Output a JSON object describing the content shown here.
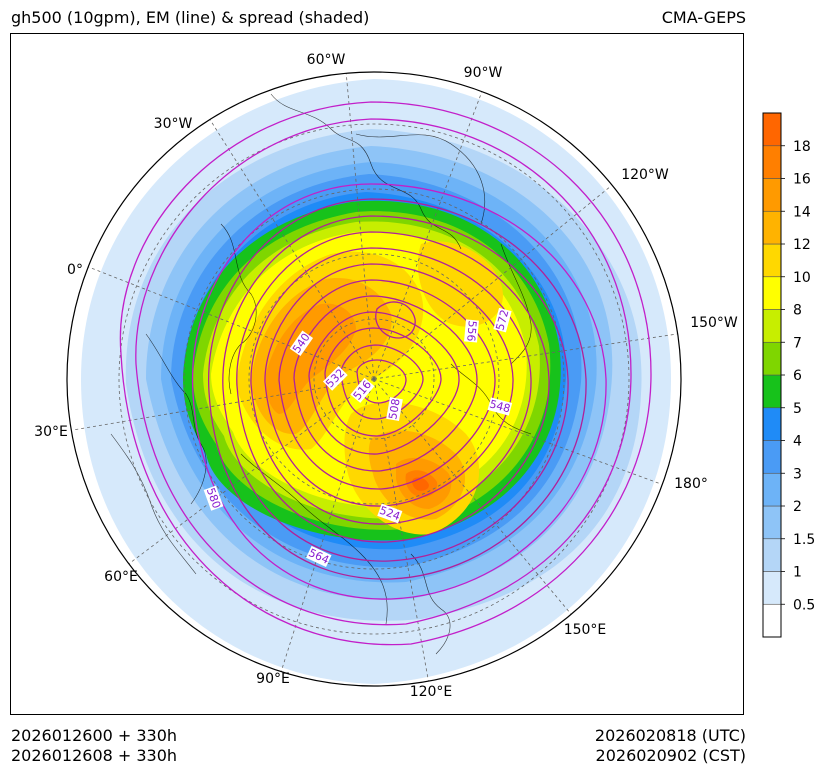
{
  "header": {
    "title": "gh500 (10gpm), EM (line) & spread (shaded)",
    "source": "CMA-GEPS"
  },
  "footer": {
    "init_utc": "2026012600 + 330h",
    "init_cst": "2026012608 + 330h",
    "valid_utc": "2026020818 (UTC)",
    "valid_cst": "2026020902 (CST)"
  },
  "map": {
    "projection": "north-polar-stereographic",
    "longitude_labels": [
      "60°W",
      "90°W",
      "30°W",
      "120°W",
      "0°",
      "150°W",
      "30°E",
      "180°",
      "60°E",
      "150°E",
      "90°E",
      "120°E"
    ],
    "contour_labels": [
      "540",
      "532",
      "516",
      "508",
      "556",
      "572",
      "548",
      "524",
      "580",
      "564"
    ],
    "contour_color": "#b0209a",
    "label_color": "#8a1fd0"
  },
  "colorbar": {
    "levels": [
      "0.5",
      "1",
      "1.5",
      "2",
      "3",
      "4",
      "5",
      "6",
      "7",
      "8",
      "10",
      "12",
      "14",
      "16",
      "18"
    ],
    "colors": [
      "#ffffff",
      "#d6e9fb",
      "#b4d6f7",
      "#8ec4f7",
      "#6db3f7",
      "#4a9bf5",
      "#1f8bf7",
      "#17c21b",
      "#7fd600",
      "#c7ee00",
      "#ffff00",
      "#ffd800",
      "#ffb300",
      "#ff9a00",
      "#ff7f00",
      "#ff6600"
    ]
  }
}
